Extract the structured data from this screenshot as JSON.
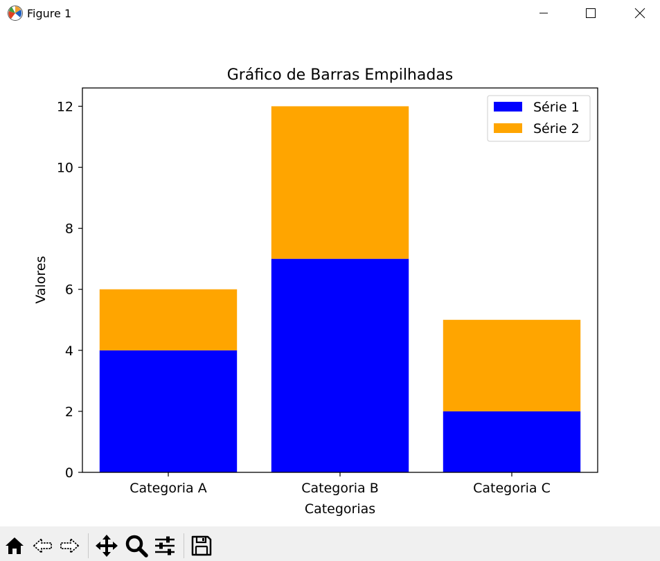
{
  "window": {
    "title": "Figure 1",
    "icon": "matplotlib-icon",
    "controls": [
      "minimize-icon",
      "maximize-icon",
      "close-icon"
    ]
  },
  "chart_data": {
    "type": "bar",
    "stacked": true,
    "title": "Gráfico de Barras Empilhadas",
    "xlabel": "Categorias",
    "ylabel": "Valores",
    "categories": [
      "Categoria A",
      "Categoria B",
      "Categoria C"
    ],
    "series": [
      {
        "name": "Série 1",
        "values": [
          4,
          7,
          2
        ],
        "color": "#0000ff"
      },
      {
        "name": "Série 2",
        "values": [
          2,
          5,
          3
        ],
        "color": "#ffa500"
      }
    ],
    "ylim": [
      0,
      12.6
    ],
    "yticks": [
      0,
      2,
      4,
      6,
      8,
      10,
      12
    ],
    "grid": false,
    "legend": "top-right"
  },
  "toolbar": {
    "tools": [
      "home-icon",
      "back-icon",
      "forward-icon",
      "pan-icon",
      "zoom-icon",
      "configure-subplots-icon",
      "save-icon"
    ]
  }
}
